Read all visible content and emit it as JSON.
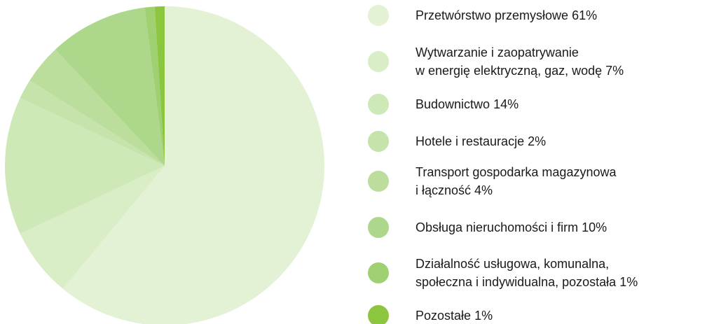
{
  "chart_data": {
    "type": "pie",
    "categories": [
      "Przetwórstwo przemysłowe",
      "Wytwarzanie i zaopatrywanie\nw energię elektryczną, gaz, wodę",
      "Budownictwo",
      "Hotele i restauracje",
      "Transport gospodarka magazynowa\ni łączność",
      "Obsługa nieruchomości i firm",
      "Działalność usługowa, komunalna,\nspołeczna i indywidualna, pozostała",
      "Pozostałe"
    ],
    "values": [
      61,
      7,
      14,
      2,
      4,
      10,
      1,
      1
    ],
    "value_labels": [
      "61%",
      "7%",
      "14%",
      "2%",
      "4%",
      "10%",
      "1%",
      "1%"
    ],
    "colors": [
      "#e3f1d4",
      "#d9edc6",
      "#cfe8b8",
      "#c5e3aa",
      "#bbde9c",
      "#add78a",
      "#9fd072",
      "#8cc63f"
    ]
  }
}
